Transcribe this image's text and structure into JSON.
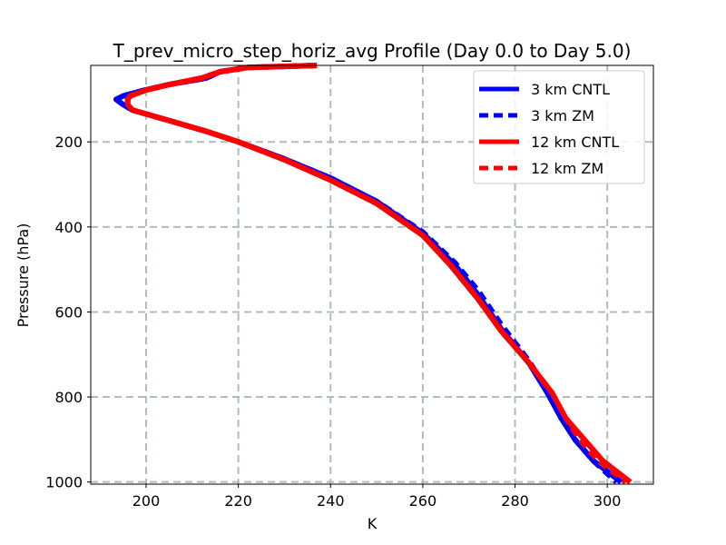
{
  "chart_data": {
    "type": "line",
    "title": "T_prev_micro_step_horiz_avg Profile (Day 0.0 to Day 5.0)",
    "xlabel": "K",
    "ylabel": "Pressure (hPa)",
    "xlim": [
      188,
      310
    ],
    "ylim": [
      1005,
      20
    ],
    "y_inverted": true,
    "grid": true,
    "xticks": [
      200,
      220,
      240,
      260,
      280,
      300
    ],
    "yticks": [
      200,
      400,
      600,
      800,
      1000
    ],
    "legend_position": "top-right",
    "series": [
      {
        "name": "3 km CNTL",
        "color": "#0000ff",
        "style": "solid",
        "points": [
          [
            237,
            20
          ],
          [
            222,
            25
          ],
          [
            216,
            35
          ],
          [
            213,
            50
          ],
          [
            205,
            65
          ],
          [
            199,
            80
          ],
          [
            195,
            92
          ],
          [
            193.5,
            100
          ],
          [
            195,
            112
          ],
          [
            197,
            125
          ],
          [
            205,
            150
          ],
          [
            213,
            175
          ],
          [
            220,
            200
          ],
          [
            230,
            240
          ],
          [
            240,
            285
          ],
          [
            250,
            340
          ],
          [
            260,
            415
          ],
          [
            267,
            490
          ],
          [
            272,
            560
          ],
          [
            277,
            640
          ],
          [
            283,
            720
          ],
          [
            287,
            790
          ],
          [
            290,
            850
          ],
          [
            293,
            900
          ],
          [
            297,
            950
          ],
          [
            303,
            1000
          ]
        ]
      },
      {
        "name": "3 km ZM",
        "color": "#0000ff",
        "style": "dashed",
        "points": [
          [
            237,
            20
          ],
          [
            222,
            25
          ],
          [
            216,
            35
          ],
          [
            213,
            50
          ],
          [
            205,
            65
          ],
          [
            199,
            80
          ],
          [
            195,
            92
          ],
          [
            193.5,
            100
          ],
          [
            195,
            112
          ],
          [
            197,
            125
          ],
          [
            205,
            150
          ],
          [
            213,
            175
          ],
          [
            220,
            200
          ],
          [
            230,
            240
          ],
          [
            240,
            285
          ],
          [
            250,
            340
          ],
          [
            260,
            412
          ],
          [
            267,
            485
          ],
          [
            272,
            550
          ],
          [
            277,
            630
          ],
          [
            283,
            715
          ],
          [
            287,
            785
          ],
          [
            290,
            848
          ],
          [
            293,
            900
          ],
          [
            297,
            950
          ],
          [
            302,
            1000
          ]
        ]
      },
      {
        "name": "12 km CNTL",
        "color": "#ff0000",
        "style": "solid",
        "points": [
          [
            237,
            20
          ],
          [
            222,
            25
          ],
          [
            216,
            35
          ],
          [
            212,
            50
          ],
          [
            205,
            65
          ],
          [
            200,
            78
          ],
          [
            196.5,
            92
          ],
          [
            196,
            100
          ],
          [
            196,
            112
          ],
          [
            197,
            125
          ],
          [
            205,
            150
          ],
          [
            213,
            175
          ],
          [
            220,
            200
          ],
          [
            230,
            242
          ],
          [
            240,
            290
          ],
          [
            250,
            345
          ],
          [
            260,
            420
          ],
          [
            266,
            490
          ],
          [
            272,
            570
          ],
          [
            277,
            645
          ],
          [
            283,
            720
          ],
          [
            288,
            790
          ],
          [
            291,
            850
          ],
          [
            295,
            900
          ],
          [
            299,
            950
          ],
          [
            305,
            1000
          ]
        ]
      },
      {
        "name": "12 km ZM",
        "color": "#ff0000",
        "style": "dashed",
        "points": [
          [
            237,
            20
          ],
          [
            222,
            25
          ],
          [
            216,
            35
          ],
          [
            212,
            50
          ],
          [
            205,
            65
          ],
          [
            200,
            78
          ],
          [
            196.5,
            92
          ],
          [
            196,
            100
          ],
          [
            196,
            112
          ],
          [
            197,
            125
          ],
          [
            205,
            150
          ],
          [
            213,
            175
          ],
          [
            220,
            200
          ],
          [
            230,
            242
          ],
          [
            240,
            290
          ],
          [
            250,
            345
          ],
          [
            260,
            420
          ],
          [
            266,
            490
          ],
          [
            272,
            570
          ],
          [
            277,
            645
          ],
          [
            283,
            720
          ],
          [
            288,
            790
          ],
          [
            291,
            850
          ],
          [
            294,
            900
          ],
          [
            298,
            950
          ],
          [
            304,
            1000
          ]
        ]
      }
    ]
  }
}
